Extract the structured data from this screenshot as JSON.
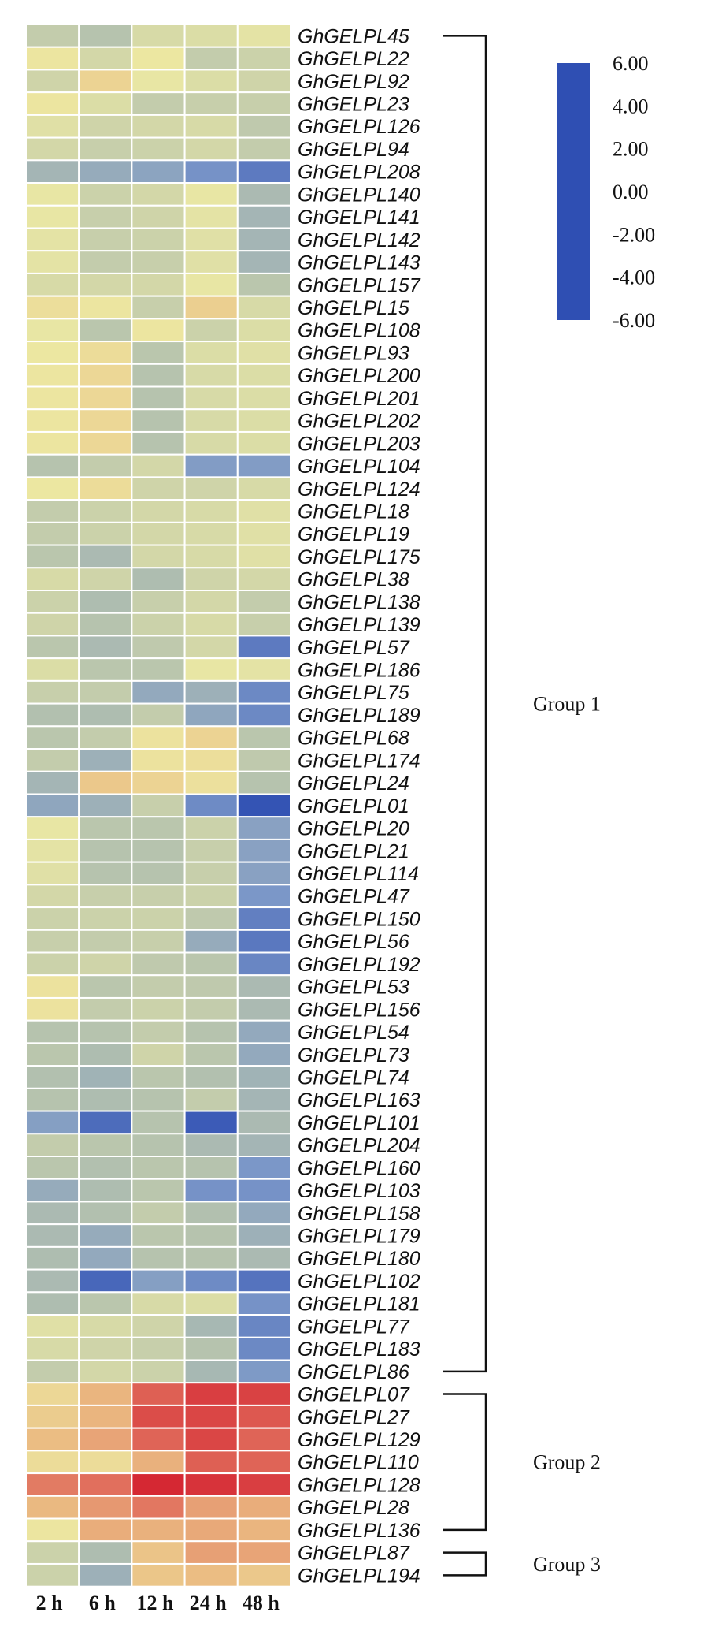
{
  "chart_data": {
    "type": "heatmap",
    "columns": [
      "2 h",
      "6 h",
      "12 h",
      "24 h",
      "48 h"
    ],
    "rows": [
      {
        "gene": "GhGELPL45",
        "values": [
          -1.0,
          -1.3,
          -0.5,
          -0.4,
          -0.2
        ]
      },
      {
        "gene": "GhGELPL22",
        "values": [
          0.2,
          -0.6,
          0.1,
          -1.0,
          -0.8
        ]
      },
      {
        "gene": "GhGELPL92",
        "values": [
          -0.7,
          1.0,
          -0.1,
          -0.4,
          -0.7
        ]
      },
      {
        "gene": "GhGELPL23",
        "values": [
          0.2,
          -0.4,
          -1.0,
          -0.9,
          -0.9
        ]
      },
      {
        "gene": "GhGELPL126",
        "values": [
          -0.3,
          -0.7,
          -0.6,
          -0.5,
          -1.1
        ]
      },
      {
        "gene": "GhGELPL94",
        "values": [
          -0.6,
          -0.9,
          -0.8,
          -0.6,
          -1.0
        ]
      },
      {
        "gene": "GhGELPL208",
        "values": [
          -1.8,
          -2.2,
          -2.5,
          -3.2,
          -4.2
        ]
      },
      {
        "gene": "GhGELPL140",
        "values": [
          -0.1,
          -0.8,
          -0.6,
          -0.1,
          -1.6
        ]
      },
      {
        "gene": "GhGELPL141",
        "values": [
          -0.1,
          -0.9,
          -0.7,
          -0.2,
          -1.8
        ]
      },
      {
        "gene": "GhGELPL142",
        "values": [
          -0.2,
          -0.9,
          -0.8,
          -0.3,
          -1.8
        ]
      },
      {
        "gene": "GhGELPL143",
        "values": [
          -0.2,
          -1.0,
          -0.9,
          -0.3,
          -1.8
        ]
      },
      {
        "gene": "GhGELPL157",
        "values": [
          -0.5,
          -0.6,
          -0.6,
          -0.1,
          -1.2
        ]
      },
      {
        "gene": "GhGELPL15",
        "values": [
          0.5,
          0.2,
          -0.9,
          1.2,
          -0.5
        ]
      },
      {
        "gene": "GhGELPL108",
        "values": [
          -0.1,
          -1.2,
          0.2,
          -0.8,
          -0.4
        ]
      },
      {
        "gene": "GhGELPL93",
        "values": [
          0.1,
          0.6,
          -1.2,
          -0.4,
          -0.3
        ]
      },
      {
        "gene": "GhGELPL200",
        "values": [
          0.2,
          0.8,
          -1.3,
          -0.5,
          -0.4
        ]
      },
      {
        "gene": "GhGELPL201",
        "values": [
          0.2,
          0.8,
          -1.3,
          -0.5,
          -0.4
        ]
      },
      {
        "gene": "GhGELPL202",
        "values": [
          0.2,
          0.8,
          -1.3,
          -0.5,
          -0.4
        ]
      },
      {
        "gene": "GhGELPL203",
        "values": [
          0.2,
          0.8,
          -1.3,
          -0.5,
          -0.4
        ]
      },
      {
        "gene": "GhGELPL104",
        "values": [
          -1.3,
          -1.0,
          -0.6,
          -2.8,
          -2.8
        ]
      },
      {
        "gene": "GhGELPL124",
        "values": [
          0.1,
          0.6,
          -0.7,
          -0.7,
          -0.5
        ]
      },
      {
        "gene": "GhGELPL18",
        "values": [
          -1.0,
          -0.8,
          -0.6,
          -0.5,
          -0.3
        ]
      },
      {
        "gene": "GhGELPL19",
        "values": [
          -1.0,
          -0.8,
          -0.6,
          -0.5,
          -0.3
        ]
      },
      {
        "gene": "GhGELPL175",
        "values": [
          -1.2,
          -1.6,
          -0.6,
          -0.5,
          -0.3
        ]
      },
      {
        "gene": "GhGELPL38",
        "values": [
          -0.5,
          -0.7,
          -1.5,
          -0.7,
          -0.6
        ]
      },
      {
        "gene": "GhGELPL138",
        "values": [
          -0.8,
          -1.5,
          -0.9,
          -0.6,
          -1.0
        ]
      },
      {
        "gene": "GhGELPL139",
        "values": [
          -0.7,
          -1.3,
          -0.8,
          -0.5,
          -0.9
        ]
      },
      {
        "gene": "GhGELPL57",
        "values": [
          -1.2,
          -1.6,
          -1.1,
          -0.6,
          -4.2
        ]
      },
      {
        "gene": "GhGELPL186",
        "values": [
          -0.4,
          -1.2,
          -1.2,
          -0.1,
          -0.2
        ]
      },
      {
        "gene": "GhGELPL75",
        "values": [
          -0.9,
          -1.0,
          -2.3,
          -2.0,
          -3.6
        ]
      },
      {
        "gene": "GhGELPL189",
        "values": [
          -1.4,
          -1.5,
          -1.0,
          -2.4,
          -3.6
        ]
      },
      {
        "gene": "GhGELPL68",
        "values": [
          -1.2,
          -1.0,
          0.3,
          1.0,
          -1.2
        ]
      },
      {
        "gene": "GhGELPL174",
        "values": [
          -1.0,
          -2.0,
          0.3,
          0.5,
          -1.1
        ]
      },
      {
        "gene": "GhGELPL24",
        "values": [
          -1.8,
          1.5,
          1.0,
          0.4,
          -1.3
        ]
      },
      {
        "gene": "GhGELPL01",
        "values": [
          -2.4,
          -2.0,
          -0.9,
          -3.5,
          -5.8
        ]
      },
      {
        "gene": "GhGELPL20",
        "values": [
          -0.1,
          -1.2,
          -1.2,
          -0.8,
          -2.6
        ]
      },
      {
        "gene": "GhGELPL21",
        "values": [
          -0.2,
          -1.3,
          -1.3,
          -0.9,
          -2.6
        ]
      },
      {
        "gene": "GhGELPL114",
        "values": [
          -0.3,
          -1.3,
          -1.3,
          -0.9,
          -2.6
        ]
      },
      {
        "gene": "GhGELPL47",
        "values": [
          -0.6,
          -0.9,
          -0.9,
          -0.8,
          -3.0
        ]
      },
      {
        "gene": "GhGELPL150",
        "values": [
          -0.8,
          -0.8,
          -0.8,
          -1.1,
          -4.0
        ]
      },
      {
        "gene": "GhGELPL56",
        "values": [
          -0.9,
          -1.0,
          -0.9,
          -2.2,
          -4.3
        ]
      },
      {
        "gene": "GhGELPL192",
        "values": [
          -0.8,
          -0.7,
          -1.1,
          -1.2,
          -3.7
        ]
      },
      {
        "gene": "GhGELPL53",
        "values": [
          0.3,
          -1.2,
          -1.0,
          -1.1,
          -1.6
        ]
      },
      {
        "gene": "GhGELPL156",
        "values": [
          0.3,
          -1.0,
          -0.8,
          -1.0,
          -1.6
        ]
      },
      {
        "gene": "GhGELPL54",
        "values": [
          -1.3,
          -1.3,
          -1.0,
          -1.3,
          -2.3
        ]
      },
      {
        "gene": "GhGELPL73",
        "values": [
          -1.2,
          -1.5,
          -0.7,
          -1.2,
          -2.3
        ]
      },
      {
        "gene": "GhGELPL74",
        "values": [
          -1.4,
          -1.9,
          -1.2,
          -1.4,
          -1.9
        ]
      },
      {
        "gene": "GhGELPL163",
        "values": [
          -1.3,
          -1.5,
          -1.3,
          -1.0,
          -1.8
        ]
      },
      {
        "gene": "GhGELPL101",
        "values": [
          -2.7,
          -4.8,
          -1.3,
          -5.5,
          -1.6
        ]
      },
      {
        "gene": "GhGELPL204",
        "values": [
          -1.0,
          -1.2,
          -1.3,
          -1.6,
          -1.8
        ]
      },
      {
        "gene": "GhGELPL160",
        "values": [
          -1.2,
          -1.4,
          -1.2,
          -1.3,
          -3.0
        ]
      },
      {
        "gene": "GhGELPL103",
        "values": [
          -2.2,
          -1.5,
          -1.2,
          -3.2,
          -3.2
        ]
      },
      {
        "gene": "GhGELPL158",
        "values": [
          -1.6,
          -1.4,
          -1.0,
          -1.4,
          -2.3
        ]
      },
      {
        "gene": "GhGELPL179",
        "values": [
          -1.6,
          -2.2,
          -1.2,
          -1.3,
          -2.0
        ]
      },
      {
        "gene": "GhGELPL180",
        "values": [
          -1.5,
          -2.3,
          -1.3,
          -1.3,
          -1.6
        ]
      },
      {
        "gene": "GhGELPL102",
        "values": [
          -1.6,
          -5.0,
          -2.7,
          -3.5,
          -4.5
        ]
      },
      {
        "gene": "GhGELPL181",
        "values": [
          -1.5,
          -1.2,
          -0.5,
          -0.4,
          -3.2
        ]
      },
      {
        "gene": "GhGELPL77",
        "values": [
          -0.3,
          -0.5,
          -0.7,
          -1.7,
          -3.7
        ]
      },
      {
        "gene": "GhGELPL183",
        "values": [
          -0.5,
          -0.7,
          -0.9,
          -1.3,
          -3.6
        ]
      },
      {
        "gene": "GhGELPL86",
        "values": [
          -1.0,
          -0.6,
          -0.8,
          -1.7,
          -2.9
        ]
      },
      {
        "gene": "GhGELPL07",
        "values": [
          0.8,
          2.2,
          4.3,
          5.2,
          5.1
        ]
      },
      {
        "gene": "GhGELPL27",
        "values": [
          1.3,
          2.2,
          4.8,
          5.0,
          4.5
        ]
      },
      {
        "gene": "GhGELPL129",
        "values": [
          2.0,
          2.6,
          4.2,
          5.0,
          4.2
        ]
      },
      {
        "gene": "GhGELPL110",
        "values": [
          0.6,
          0.6,
          2.3,
          4.3,
          4.2
        ]
      },
      {
        "gene": "GhGELPL128",
        "values": [
          3.6,
          3.9,
          5.8,
          5.5,
          5.2
        ]
      },
      {
        "gene": "GhGELPL28",
        "values": [
          2.1,
          2.9,
          3.7,
          2.7,
          2.4
        ]
      },
      {
        "gene": "GhGELPL136",
        "values": [
          0.2,
          2.4,
          2.3,
          2.5,
          2.2
        ]
      },
      {
        "gene": "GhGELPL87",
        "values": [
          -0.8,
          -1.5,
          1.7,
          2.7,
          2.6
        ]
      },
      {
        "gene": "GhGELPL194",
        "values": [
          -0.8,
          -2.0,
          1.6,
          2.0,
          1.5
        ]
      }
    ],
    "groups": [
      {
        "label": "Group 1",
        "first": 0,
        "last": 59
      },
      {
        "label": "Group 2",
        "first": 60,
        "last": 66
      },
      {
        "label": "Group 3",
        "first": 67,
        "last": 68
      }
    ],
    "color_scale": {
      "min": -6,
      "max": 6,
      "ticks": [
        "6.00",
        "4.00",
        "2.00",
        "0.00",
        "-2.00",
        "-4.00",
        "-6.00"
      ],
      "stops": [
        {
          "value": -6,
          "color": "#2f4fb3"
        },
        {
          "value": -3,
          "color": "#7b97c8"
        },
        {
          "value": -1.5,
          "color": "#aebdb0"
        },
        {
          "value": 0,
          "color": "#ece9a3"
        },
        {
          "value": 2,
          "color": "#ebbd83"
        },
        {
          "value": 4,
          "color": "#e06b5b"
        },
        {
          "value": 6,
          "color": "#d4202f"
        }
      ]
    }
  }
}
